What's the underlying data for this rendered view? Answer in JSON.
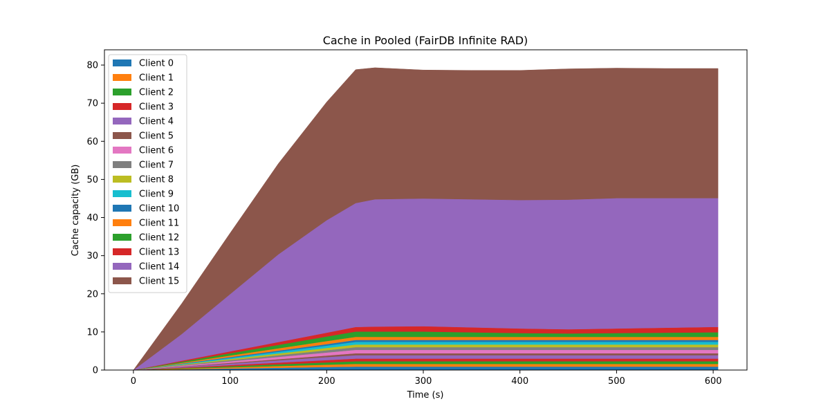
{
  "chart_data": {
    "type": "area",
    "stacked": true,
    "title": "Cache in  Pooled (FairDB Infinite RAD)",
    "xlabel": "Time (s)",
    "ylabel": "Cache capacity (GB)",
    "xlim": [
      -30,
      635
    ],
    "ylim": [
      0,
      84
    ],
    "xticks": [
      0,
      100,
      200,
      300,
      400,
      500,
      600
    ],
    "yticks": [
      0,
      10,
      20,
      30,
      40,
      50,
      60,
      70,
      80
    ],
    "grid": false,
    "legend_position": "top-left",
    "x": [
      0,
      50,
      100,
      150,
      200,
      230,
      250,
      300,
      350,
      400,
      450,
      500,
      550,
      600,
      605
    ],
    "series": [
      {
        "name": "Client 0",
        "color": "#1f77b4",
        "values": [
          0,
          0.2,
          0.4,
          0.6,
          0.8,
          0.9,
          0.9,
          0.9,
          0.9,
          0.9,
          0.9,
          0.9,
          0.9,
          0.9,
          0.9
        ]
      },
      {
        "name": "Client 1",
        "color": "#ff7f0e",
        "values": [
          0,
          0.15,
          0.3,
          0.45,
          0.6,
          0.7,
          0.7,
          0.7,
          0.7,
          0.7,
          0.7,
          0.7,
          0.7,
          0.7,
          0.7
        ]
      },
      {
        "name": "Client 2",
        "color": "#2ca02c",
        "values": [
          0,
          0.15,
          0.3,
          0.45,
          0.6,
          0.7,
          0.7,
          0.7,
          0.7,
          0.7,
          0.7,
          0.7,
          0.7,
          0.7,
          0.7
        ]
      },
      {
        "name": "Client 3",
        "color": "#d62728",
        "values": [
          0,
          0.15,
          0.3,
          0.45,
          0.6,
          0.7,
          0.7,
          0.7,
          0.7,
          0.7,
          0.7,
          0.7,
          0.7,
          0.7,
          0.7
        ]
      },
      {
        "name": "Client 4",
        "color": "#9467bd",
        "values": [
          0,
          0.2,
          0.4,
          0.6,
          0.8,
          0.9,
          0.9,
          0.9,
          0.9,
          0.9,
          0.9,
          0.9,
          0.9,
          0.9,
          0.9
        ]
      },
      {
        "name": "Client 5",
        "color": "#8c564b",
        "values": [
          0,
          0.1,
          0.2,
          0.3,
          0.4,
          0.5,
          0.5,
          0.5,
          0.5,
          0.5,
          0.5,
          0.5,
          0.5,
          0.5,
          0.5
        ]
      },
      {
        "name": "Client 6",
        "color": "#e377c2",
        "values": [
          0,
          0.2,
          0.4,
          0.6,
          0.8,
          0.9,
          0.9,
          0.9,
          0.9,
          0.9,
          0.9,
          0.9,
          0.9,
          0.9,
          0.9
        ]
      },
      {
        "name": "Client 7",
        "color": "#7f7f7f",
        "values": [
          0,
          0.15,
          0.3,
          0.45,
          0.6,
          0.7,
          0.7,
          0.7,
          0.7,
          0.7,
          0.7,
          0.7,
          0.7,
          0.7,
          0.7
        ]
      },
      {
        "name": "Client 8",
        "color": "#bcbd22",
        "values": [
          0,
          0.15,
          0.3,
          0.45,
          0.6,
          0.7,
          0.7,
          0.7,
          0.7,
          0.7,
          0.7,
          0.7,
          0.7,
          0.7,
          0.7
        ]
      },
      {
        "name": "Client 9",
        "color": "#17becf",
        "values": [
          0,
          0.15,
          0.3,
          0.45,
          0.6,
          0.7,
          0.7,
          0.7,
          0.7,
          0.7,
          0.7,
          0.7,
          0.7,
          0.7,
          0.7
        ]
      },
      {
        "name": "Client 10",
        "color": "#1f77b4",
        "values": [
          0,
          0.1,
          0.2,
          0.3,
          0.4,
          0.5,
          0.5,
          0.5,
          0.5,
          0.5,
          0.5,
          0.5,
          0.5,
          0.5,
          0.5
        ]
      },
      {
        "name": "Client 11",
        "color": "#ff7f0e",
        "values": [
          0,
          0.2,
          0.4,
          0.6,
          0.8,
          0.8,
          0.8,
          0.8,
          0.8,
          0.8,
          0.8,
          0.8,
          0.8,
          0.8,
          0.8
        ]
      },
      {
        "name": "Client 12",
        "color": "#2ca02c",
        "values": [
          0,
          0.3,
          0.6,
          0.9,
          1.2,
          1.4,
          1.4,
          1.4,
          1.2,
          1.0,
          0.9,
          1.0,
          1.1,
          1.2,
          1.2
        ]
      },
      {
        "name": "Client 13",
        "color": "#d62728",
        "values": [
          0,
          0.25,
          0.5,
          0.75,
          1.0,
          1.2,
          1.3,
          1.4,
          1.3,
          1.2,
          1.1,
          1.2,
          1.3,
          1.4,
          1.4
        ]
      },
      {
        "name": "Client 14",
        "color": "#9467bd",
        "values": [
          0,
          7.0,
          15.0,
          23.0,
          29.5,
          32.5,
          33.4,
          33.5,
          33.6,
          33.7,
          34.0,
          34.2,
          34.0,
          33.8,
          33.8
        ]
      },
      {
        "name": "Client 15",
        "color": "#8c564b",
        "values": [
          0,
          8.0,
          16.0,
          23.8,
          31.0,
          35.0,
          34.5,
          33.7,
          33.8,
          34.0,
          34.3,
          34.1,
          34.0,
          34.0,
          34.0
        ]
      }
    ]
  }
}
